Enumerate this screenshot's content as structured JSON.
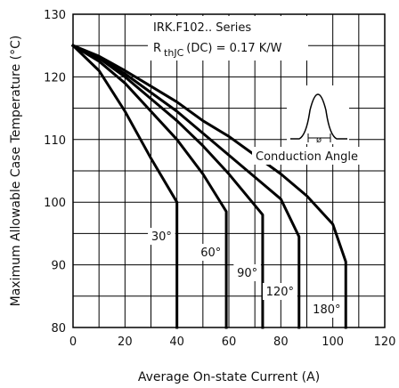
{
  "chart_data": {
    "type": "line",
    "title": "",
    "xlabel": "Average On-state Current (A)",
    "ylabel": "Maximum Allowable Case Temperature (°C)",
    "xlim": [
      0,
      120
    ],
    "ylim": [
      80,
      130
    ],
    "x_ticks": [
      0,
      20,
      40,
      60,
      80,
      100,
      120
    ],
    "y_ticks": [
      80,
      90,
      100,
      110,
      120,
      130
    ],
    "grid": true,
    "series_label": "IRK.F102.. Series",
    "rth_prefix": "R",
    "rth_subscript": "thJC",
    "rth_suffix": "(DC) = 0.17 K/W",
    "inset_label": "Conduction Angle",
    "inset_symbol": "ø",
    "series": [
      {
        "name": "30°",
        "x": [
          0,
          10,
          20,
          30,
          40,
          40
        ],
        "y": [
          125,
          121,
          114.5,
          107,
          100,
          80
        ]
      },
      {
        "name": "60°",
        "x": [
          0,
          10,
          20,
          30,
          40,
          50,
          59,
          59
        ],
        "y": [
          125,
          122.5,
          119,
          114.5,
          110,
          104.5,
          98.5,
          80
        ]
      },
      {
        "name": "90°",
        "x": [
          0,
          10,
          20,
          30,
          40,
          50,
          60,
          73,
          73
        ],
        "y": [
          125,
          123,
          120,
          116.5,
          113,
          109,
          104.5,
          98,
          80
        ]
      },
      {
        "name": "120°",
        "x": [
          0,
          10,
          20,
          30,
          40,
          50,
          60,
          70,
          80,
          87,
          87
        ],
        "y": [
          125,
          123,
          120.5,
          117.5,
          114.5,
          111,
          107.5,
          104,
          100.5,
          94.5,
          80
        ]
      },
      {
        "name": "180°",
        "x": [
          0,
          10,
          20,
          30,
          40,
          50,
          60,
          70,
          80,
          90,
          100,
          105,
          105
        ],
        "y": [
          125,
          123.3,
          121,
          118.5,
          116,
          113,
          110.5,
          107.5,
          104.5,
          101,
          96.5,
          90.5,
          80
        ]
      }
    ]
  }
}
